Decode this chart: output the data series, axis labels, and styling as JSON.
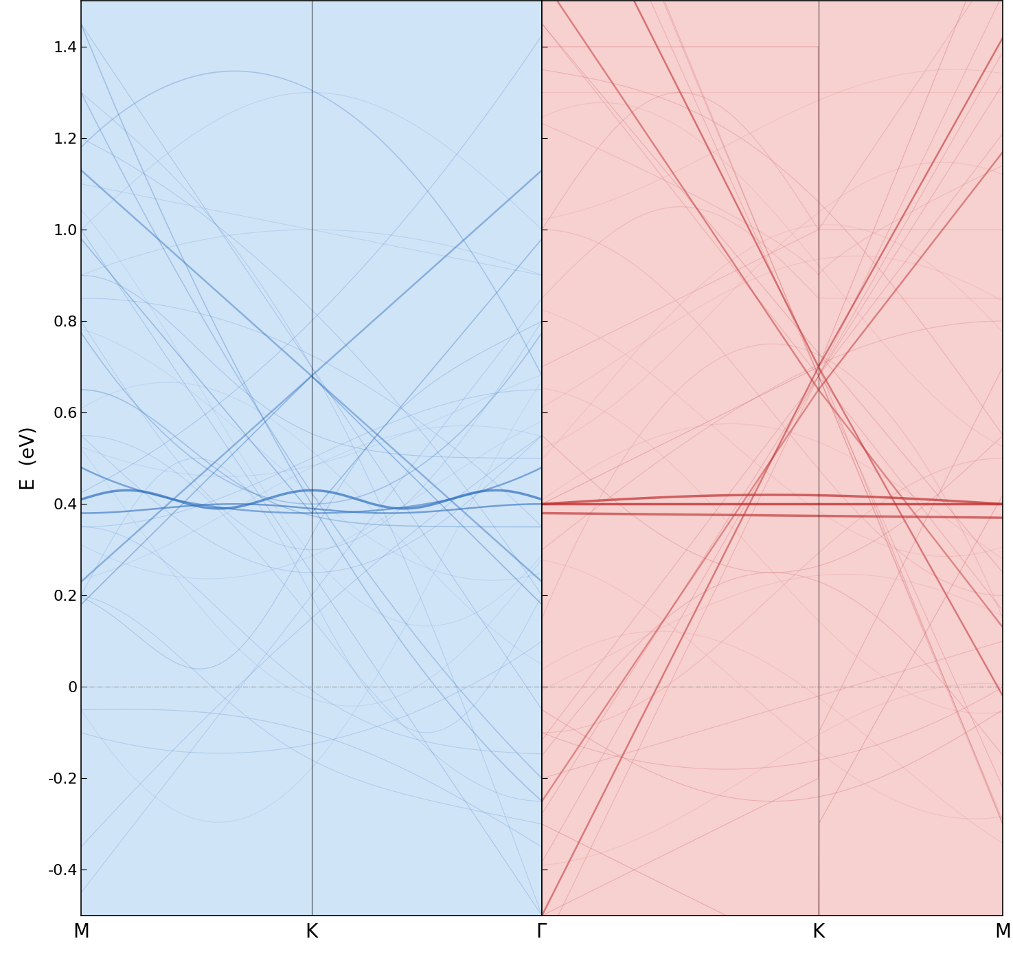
{
  "left_panel": {
    "color": "#3070c0",
    "bg_color": "#d0e4f7",
    "x_labels": [
      "M",
      "K"
    ],
    "x_ticks": [
      0.0,
      0.5
    ],
    "x_lim": [
      0.0,
      1.0
    ]
  },
  "right_panel": {
    "color": "#c03030",
    "bg_color": "#f7d0d0",
    "x_labels": [
      "Γ",
      "K",
      "M"
    ],
    "x_ticks": [
      0.0,
      0.6,
      1.0
    ],
    "x_lim": [
      0.0,
      1.0
    ]
  },
  "y_lim": [
    -0.5,
    1.5
  ],
  "y_ticks": [
    -0.4,
    -0.2,
    0.0,
    0.2,
    0.4,
    0.6,
    0.8,
    1.0,
    1.2,
    1.4
  ],
  "ylabel": "E  (eV)",
  "fermi_level": 0.0,
  "line_alpha_thin": 0.18,
  "line_alpha_thick": 0.5,
  "line_alpha_vthick": 0.8,
  "bg_alpha": 0.35
}
